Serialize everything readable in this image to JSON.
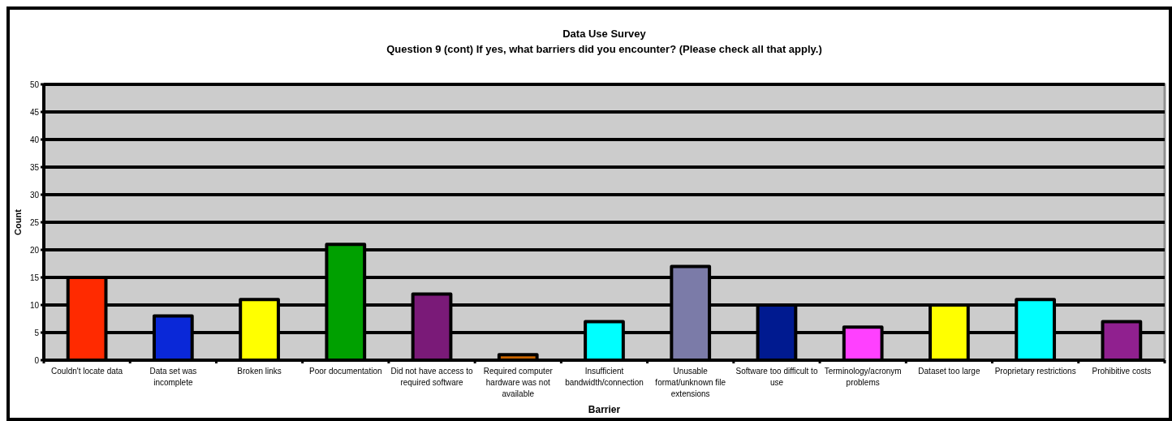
{
  "chart_data": {
    "type": "bar",
    "title": "Data Use Survey",
    "subtitle": "Question 9 (cont)  If yes, what barriers did you encounter?  (Please check all that apply.)",
    "xlabel": "Barrier",
    "ylabel": "Count",
    "categories": [
      "Couldn't locate data",
      "Data set was incomplete",
      "Broken links",
      "Poor documentation",
      "Did not have access to required software",
      "Required computer hardware was not available",
      "Insufficient bandwidth/connection",
      "Unusable format/unknown file extensions",
      "Software too difficult to use",
      "Terminology/acronym problems",
      "Dataset too large",
      "Proprietary restrictions",
      "Prohibitive costs"
    ],
    "values": [
      15,
      8,
      11,
      21,
      12,
      1,
      7,
      17,
      10,
      6,
      10,
      11,
      7
    ],
    "colors": [
      "#ff2a00",
      "#0a28d8",
      "#ffff00",
      "#00a000",
      "#7a1a78",
      "#c86400",
      "#00ffff",
      "#7b7ba8",
      "#001a90",
      "#ff40ff",
      "#ffff00",
      "#00ffff",
      "#90208f"
    ],
    "ylim": [
      0,
      50
    ],
    "yticks": [
      0,
      5,
      10,
      15,
      20,
      25,
      30,
      35,
      40,
      45,
      50
    ],
    "grid": "y"
  }
}
